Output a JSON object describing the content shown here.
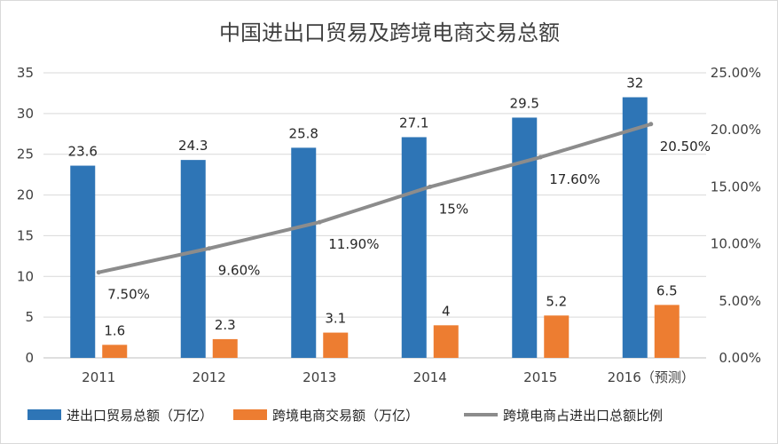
{
  "chart_data": {
    "type": "bar",
    "title": "中国进出口贸易及跨境电商交易总额",
    "categories": [
      "2011",
      "2012",
      "2013",
      "2014",
      "2015",
      "2016（预测）"
    ],
    "y_left": {
      "min": 0,
      "max": 35,
      "ticks": [
        "0",
        "5",
        "10",
        "15",
        "20",
        "25",
        "30",
        "35"
      ],
      "tick_values": [
        0,
        5,
        10,
        15,
        20,
        25,
        30,
        35
      ]
    },
    "y_right": {
      "min": 0,
      "max": 25,
      "ticks": [
        "0.00%",
        "5.00%",
        "10.00%",
        "15.00%",
        "20.00%",
        "25.00%"
      ],
      "tick_values": [
        0,
        5,
        10,
        15,
        20,
        25
      ]
    },
    "grid": true,
    "legend_position": "bottom",
    "series": [
      {
        "name": "进出口贸易总额（万亿）",
        "kind": "bar",
        "axis": "left",
        "color": "#2e75b6",
        "values": [
          23.6,
          24.3,
          25.8,
          27.1,
          29.5,
          32
        ],
        "labels": [
          "23.6",
          "24.3",
          "25.8",
          "27.1",
          "29.5",
          "32"
        ]
      },
      {
        "name": "跨境电商交易额（万亿）",
        "kind": "bar",
        "axis": "left",
        "color": "#ed7d31",
        "values": [
          1.6,
          2.3,
          3.1,
          4,
          5.2,
          6.5
        ],
        "labels": [
          "1.6",
          "2.3",
          "3.1",
          "4",
          "5.2",
          "6.5"
        ]
      },
      {
        "name": "跨境电商占进出口总额比例",
        "kind": "line",
        "axis": "right",
        "color": "#8c8c8c",
        "values": [
          7.5,
          9.6,
          11.9,
          15,
          17.6,
          20.5
        ],
        "labels": [
          "7.50%",
          "9.60%",
          "11.90%",
          "15%",
          "17.60%",
          "20.50%"
        ]
      }
    ]
  }
}
